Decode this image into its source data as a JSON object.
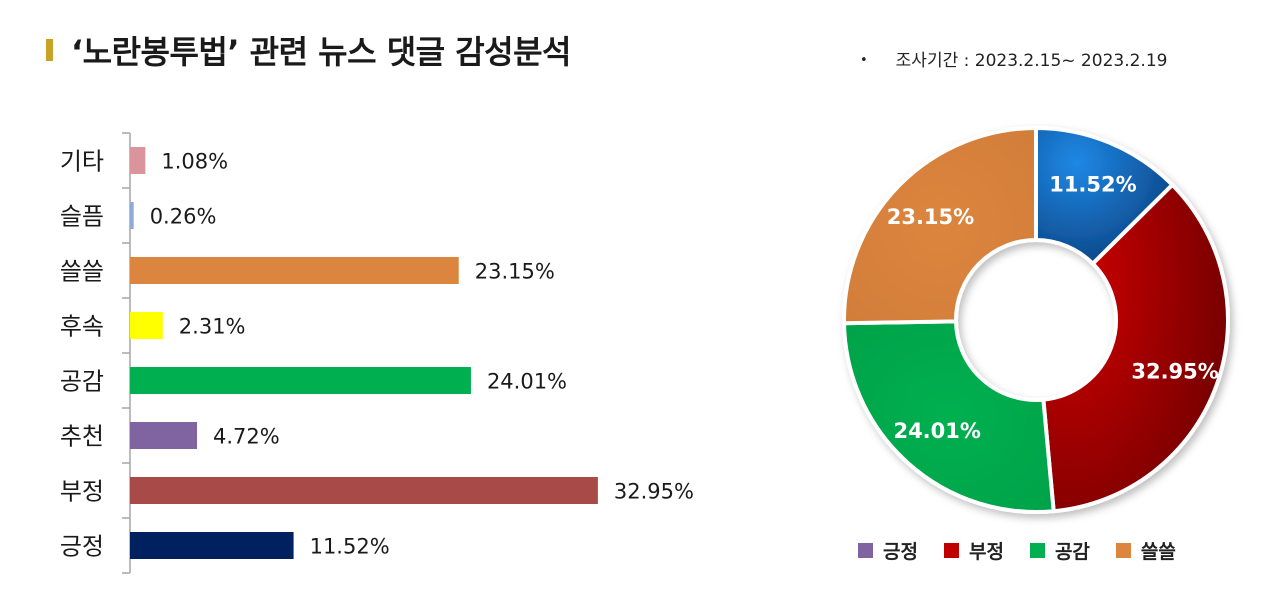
{
  "header": {
    "title": "‘노란봉투법’ 관련 뉴스 댓글 감성분석",
    "period": "조사기간 : 2023.2.15~ 2023.2.19",
    "period_bullet": "•"
  },
  "chart_data": [
    {
      "type": "bar",
      "orientation": "horizontal",
      "title": "",
      "categories": [
        "기타",
        "슬픔",
        "쓸쓸",
        "후속",
        "공감",
        "추천",
        "부정",
        "긍정"
      ],
      "values": [
        1.08,
        0.26,
        23.15,
        2.31,
        24.01,
        4.72,
        32.95,
        11.52
      ],
      "value_labels": [
        "1.08%",
        "0.26%",
        "23.15%",
        "2.31%",
        "24.01%",
        "4.72%",
        "32.95%",
        "11.52%"
      ],
      "colors": [
        "#d9959b",
        "#8faad6",
        "#dc853e",
        "#ffff00",
        "#00b050",
        "#8064a2",
        "#a84a48",
        "#002060"
      ],
      "xlim": [
        0,
        40
      ]
    },
    {
      "type": "pie",
      "donut": true,
      "categories": [
        "긍정",
        "부정",
        "공감",
        "쓸쓸"
      ],
      "values": [
        11.52,
        32.95,
        24.01,
        23.15
      ],
      "value_labels": [
        "11.52%",
        "32.95%",
        "24.01%",
        "23.15%"
      ],
      "colors": [
        "#1565c0",
        "#b00000",
        "#00b050",
        "#dc853e"
      ],
      "legend": [
        "긍정",
        "부정",
        "공감",
        "쓸쓸"
      ],
      "legend_colors": [
        "#8064a2",
        "#c00000",
        "#00b050",
        "#dc853e"
      ],
      "legend_position": "bottom"
    }
  ]
}
